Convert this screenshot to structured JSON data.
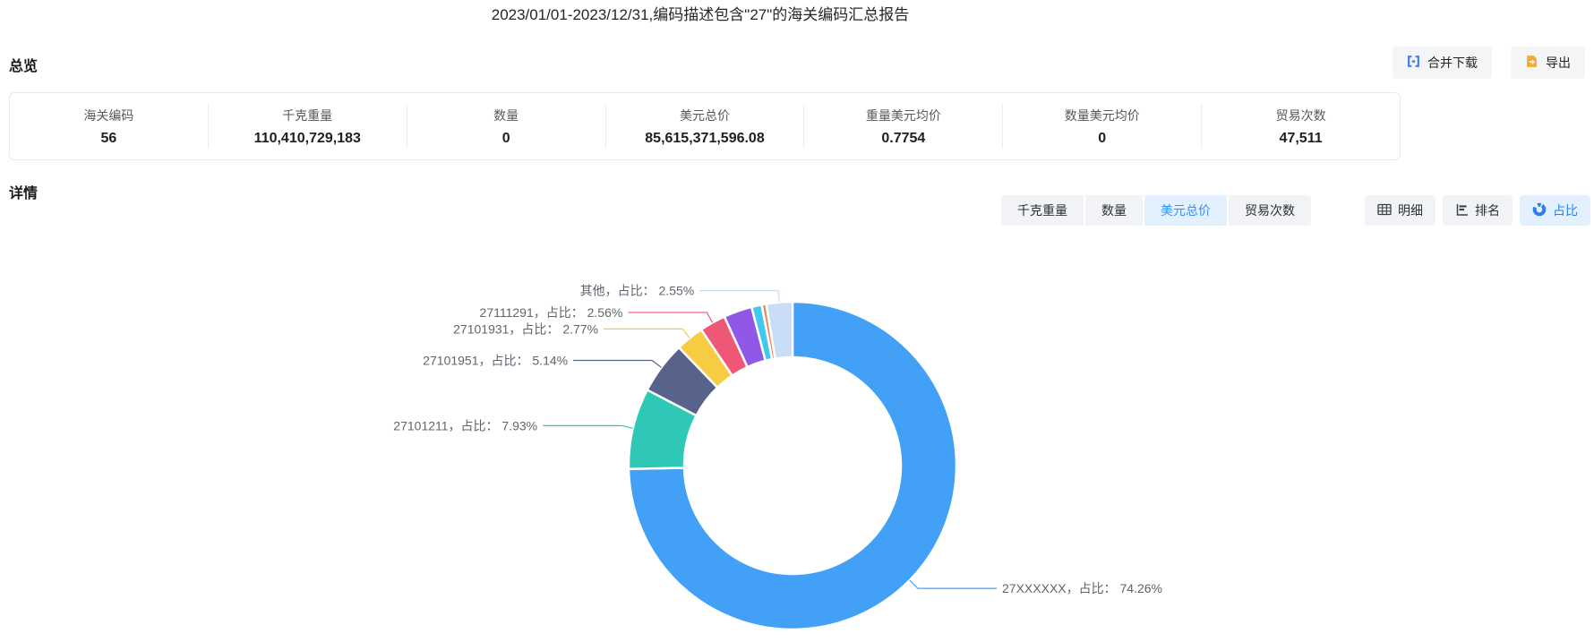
{
  "page": {
    "title": "2023/01/01-2023/12/31,编码描述包含\"27\"的海关编码汇总报告"
  },
  "overview": {
    "heading": "总览",
    "buttons": {
      "merge_download": "合并下载",
      "export": "导出"
    },
    "stats": [
      {
        "label": "海关编码",
        "value": "56"
      },
      {
        "label": "千克重量",
        "value": "110,410,729,183"
      },
      {
        "label": "数量",
        "value": "0"
      },
      {
        "label": "美元总价",
        "value": "85,615,371,596.08"
      },
      {
        "label": "重量美元均价",
        "value": "0.7754"
      },
      {
        "label": "数量美元均价",
        "value": "0"
      },
      {
        "label": "贸易次数",
        "value": "47,511"
      }
    ]
  },
  "detail": {
    "heading": "详情",
    "metric_tabs": [
      {
        "label": "千克重量",
        "active": false
      },
      {
        "label": "数量",
        "active": false
      },
      {
        "label": "美元总价",
        "active": true
      },
      {
        "label": "贸易次数",
        "active": false
      }
    ],
    "view_buttons": [
      {
        "label": "明细",
        "active": false
      },
      {
        "label": "排名",
        "active": false
      },
      {
        "label": "占比",
        "active": true
      }
    ]
  },
  "colors": {
    "accent_blue": "#3a8ff0",
    "active_tab_bg": "#e3f0fd",
    "button_bg": "#f1f3f6",
    "merge_icon": "#3e7ff0",
    "export_icon": "#f6a936",
    "label_text": "#5f646e"
  },
  "chart_data": {
    "type": "pie",
    "subtype": "donut",
    "legend_position": "none",
    "label_infix": "，占比： ",
    "label_suffix": "%",
    "slices": [
      {
        "name": "27XXXXXX",
        "value": 74.26,
        "color": "#42a0f7",
        "labeled": true
      },
      {
        "name": "27101211",
        "value": 7.93,
        "color": "#2fc8b7",
        "labeled": true
      },
      {
        "name": "27101951",
        "value": 5.14,
        "color": "#57638b",
        "labeled": true
      },
      {
        "name": "27101931",
        "value": 2.77,
        "color": "#f7cb42",
        "labeled": true
      },
      {
        "name": "27111291",
        "value": 2.56,
        "color": "#ee5776",
        "labeled": true
      },
      {
        "name": "",
        "value": 2.79,
        "color": "#9058e6",
        "labeled": false
      },
      {
        "name": "",
        "value": 1.0,
        "color": "#41c8ee",
        "labeled": false
      },
      {
        "name": "",
        "value": 0.45,
        "color": "#f08a5c",
        "labeled": false
      },
      {
        "name": "其他",
        "value": 2.55,
        "color": "#c9ddf6",
        "labeled": true
      }
    ]
  }
}
